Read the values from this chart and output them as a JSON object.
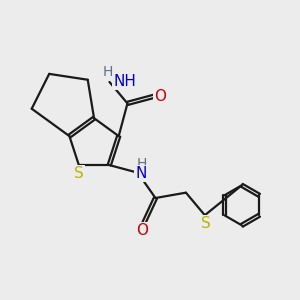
{
  "bg_color": "#ececec",
  "bond_color": "#1a1a1a",
  "S_color": "#b8b800",
  "N_color": "#0000cc",
  "O_color": "#cc0000",
  "H_color": "#607080",
  "line_width": 1.6,
  "dbo": 0.055,
  "font_size": 10,
  "fig_size": [
    3.0,
    3.0
  ],
  "xlim": [
    0,
    10
  ],
  "ylim": [
    0,
    10
  ]
}
